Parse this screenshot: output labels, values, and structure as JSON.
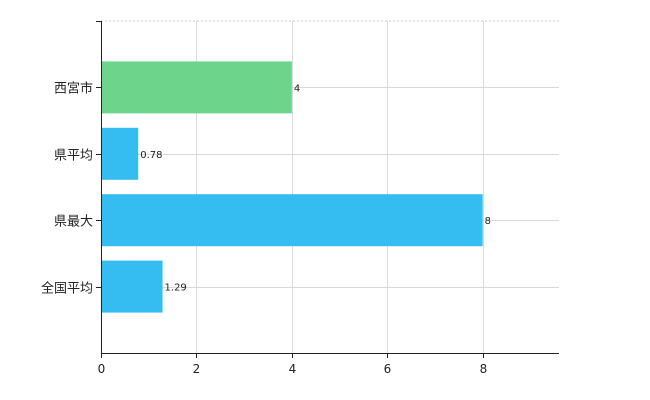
{
  "chart_data": {
    "type": "bar",
    "orientation": "horizontal",
    "categories": [
      "西宮市",
      "県平均",
      "県最大",
      "全国平均"
    ],
    "values": [
      4,
      0.78,
      8,
      1.29
    ],
    "value_labels": [
      "4",
      "0.78",
      "8",
      "1.29"
    ],
    "colors": [
      "#6dd48b",
      "#35bdf2",
      "#35bdf2",
      "#35bdf2"
    ],
    "xlim": [
      0,
      9.6
    ],
    "x_ticks": [
      0,
      2,
      4,
      6,
      8
    ],
    "grid": true,
    "title": "",
    "xlabel": "",
    "ylabel": ""
  }
}
